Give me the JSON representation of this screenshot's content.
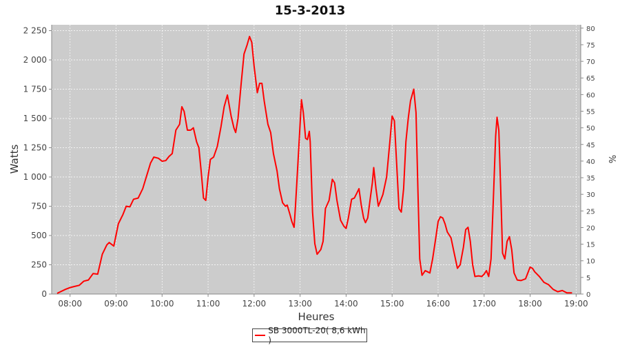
{
  "chart_data": {
    "type": "line",
    "title": "15-3-2013",
    "xlabel": "Heures",
    "ylabel": "Watts",
    "y2label": "%",
    "xlim": [
      7.6,
      19.1
    ],
    "ylim": [
      0,
      2300
    ],
    "y2lim": [
      0,
      81
    ],
    "x_ticks": [
      8,
      9,
      10,
      11,
      12,
      13,
      14,
      15,
      16,
      17,
      18,
      19
    ],
    "x_tick_labels": [
      "08:00",
      "09:00",
      "10:00",
      "11:00",
      "12:00",
      "13:00",
      "14:00",
      "15:00",
      "16:00",
      "17:00",
      "18:00",
      "19:00"
    ],
    "y_ticks": [
      0,
      250,
      500,
      750,
      1000,
      1250,
      1500,
      1750,
      2000,
      2250
    ],
    "y_tick_labels": [
      "0",
      "250",
      "500",
      "750",
      "1 000",
      "1 250",
      "1 500",
      "1 750",
      "2 000",
      "2 250"
    ],
    "y2_ticks": [
      0,
      5,
      10,
      15,
      20,
      25,
      30,
      35,
      40,
      45,
      50,
      55,
      60,
      65,
      70,
      75,
      80
    ],
    "y2_tick_labels": [
      "0",
      "5",
      "10",
      "15",
      "20",
      "25",
      "30",
      "35",
      "40",
      "45",
      "50",
      "55",
      "60",
      "65",
      "70",
      "75",
      "80"
    ],
    "grid": true,
    "legend_position": "bottom-center",
    "colors": {
      "plot_background": "#cccccc",
      "series": "#ff0000",
      "grid": "#ffffff"
    },
    "series": [
      {
        "name": "SB 3000TL-20( 8,6 kWh )",
        "color": "#ff0000",
        "points": [
          [
            7.73,
            8
          ],
          [
            7.9,
            40
          ],
          [
            8.0,
            55
          ],
          [
            8.1,
            65
          ],
          [
            8.2,
            75
          ],
          [
            8.3,
            110
          ],
          [
            8.4,
            120
          ],
          [
            8.5,
            175
          ],
          [
            8.6,
            170
          ],
          [
            8.7,
            340
          ],
          [
            8.8,
            420
          ],
          [
            8.85,
            440
          ],
          [
            8.95,
            410
          ],
          [
            9.05,
            600
          ],
          [
            9.15,
            680
          ],
          [
            9.22,
            750
          ],
          [
            9.3,
            745
          ],
          [
            9.38,
            810
          ],
          [
            9.48,
            820
          ],
          [
            9.58,
            900
          ],
          [
            9.68,
            1030
          ],
          [
            9.75,
            1120
          ],
          [
            9.82,
            1170
          ],
          [
            9.92,
            1160
          ],
          [
            10.0,
            1135
          ],
          [
            10.08,
            1140
          ],
          [
            10.15,
            1175
          ],
          [
            10.22,
            1200
          ],
          [
            10.3,
            1400
          ],
          [
            10.38,
            1450
          ],
          [
            10.43,
            1600
          ],
          [
            10.48,
            1560
          ],
          [
            10.55,
            1400
          ],
          [
            10.62,
            1400
          ],
          [
            10.68,
            1420
          ],
          [
            10.75,
            1300
          ],
          [
            10.8,
            1250
          ],
          [
            10.85,
            1050
          ],
          [
            10.9,
            820
          ],
          [
            10.95,
            800
          ],
          [
            11.0,
            1000
          ],
          [
            11.05,
            1150
          ],
          [
            11.12,
            1170
          ],
          [
            11.2,
            1260
          ],
          [
            11.28,
            1430
          ],
          [
            11.35,
            1600
          ],
          [
            11.42,
            1700
          ],
          [
            11.5,
            1520
          ],
          [
            11.56,
            1420
          ],
          [
            11.6,
            1380
          ],
          [
            11.65,
            1500
          ],
          [
            11.72,
            1800
          ],
          [
            11.78,
            2050
          ],
          [
            11.85,
            2130
          ],
          [
            11.9,
            2200
          ],
          [
            11.95,
            2150
          ],
          [
            12.0,
            1950
          ],
          [
            12.07,
            1720
          ],
          [
            12.12,
            1800
          ],
          [
            12.17,
            1800
          ],
          [
            12.22,
            1650
          ],
          [
            12.3,
            1450
          ],
          [
            12.36,
            1380
          ],
          [
            12.42,
            1200
          ],
          [
            12.5,
            1050
          ],
          [
            12.55,
            900
          ],
          [
            12.62,
            780
          ],
          [
            12.68,
            750
          ],
          [
            12.72,
            760
          ],
          [
            12.78,
            680
          ],
          [
            12.82,
            620
          ],
          [
            12.87,
            570
          ],
          [
            12.9,
            750
          ],
          [
            12.95,
            1100
          ],
          [
            13.0,
            1450
          ],
          [
            13.03,
            1660
          ],
          [
            13.07,
            1550
          ],
          [
            13.12,
            1330
          ],
          [
            13.16,
            1320
          ],
          [
            13.2,
            1390
          ],
          [
            13.22,
            1300
          ],
          [
            13.27,
            700
          ],
          [
            13.32,
            430
          ],
          [
            13.37,
            340
          ],
          [
            13.45,
            380
          ],
          [
            13.5,
            450
          ],
          [
            13.55,
            730
          ],
          [
            13.63,
            800
          ],
          [
            13.7,
            980
          ],
          [
            13.75,
            950
          ],
          [
            13.8,
            800
          ],
          [
            13.88,
            630
          ],
          [
            13.95,
            580
          ],
          [
            14.0,
            560
          ],
          [
            14.05,
            650
          ],
          [
            14.12,
            810
          ],
          [
            14.18,
            820
          ],
          [
            14.23,
            860
          ],
          [
            14.28,
            900
          ],
          [
            14.33,
            760
          ],
          [
            14.38,
            650
          ],
          [
            14.42,
            610
          ],
          [
            14.47,
            650
          ],
          [
            14.52,
            800
          ],
          [
            14.57,
            950
          ],
          [
            14.6,
            1080
          ],
          [
            14.65,
            900
          ],
          [
            14.7,
            750
          ],
          [
            14.75,
            800
          ],
          [
            14.8,
            850
          ],
          [
            14.88,
            1000
          ],
          [
            14.95,
            1300
          ],
          [
            15.0,
            1520
          ],
          [
            15.05,
            1480
          ],
          [
            15.1,
            1100
          ],
          [
            15.15,
            730
          ],
          [
            15.2,
            700
          ],
          [
            15.25,
            900
          ],
          [
            15.3,
            1300
          ],
          [
            15.35,
            1500
          ],
          [
            15.4,
            1650
          ],
          [
            15.47,
            1750
          ],
          [
            15.52,
            1550
          ],
          [
            15.56,
            900
          ],
          [
            15.6,
            300
          ],
          [
            15.65,
            160
          ],
          [
            15.72,
            200
          ],
          [
            15.77,
            190
          ],
          [
            15.82,
            180
          ],
          [
            15.88,
            300
          ],
          [
            15.95,
            480
          ],
          [
            16.0,
            620
          ],
          [
            16.05,
            660
          ],
          [
            16.1,
            650
          ],
          [
            16.15,
            600
          ],
          [
            16.2,
            530
          ],
          [
            16.28,
            480
          ],
          [
            16.35,
            350
          ],
          [
            16.42,
            220
          ],
          [
            16.48,
            250
          ],
          [
            16.55,
            400
          ],
          [
            16.6,
            550
          ],
          [
            16.65,
            570
          ],
          [
            16.7,
            450
          ],
          [
            16.75,
            250
          ],
          [
            16.8,
            150
          ],
          [
            16.88,
            155
          ],
          [
            16.95,
            150
          ],
          [
            17.0,
            170
          ],
          [
            17.05,
            200
          ],
          [
            17.1,
            150
          ],
          [
            17.15,
            300
          ],
          [
            17.2,
            800
          ],
          [
            17.25,
            1350
          ],
          [
            17.28,
            1510
          ],
          [
            17.32,
            1400
          ],
          [
            17.36,
            900
          ],
          [
            17.4,
            350
          ],
          [
            17.45,
            300
          ],
          [
            17.5,
            450
          ],
          [
            17.55,
            490
          ],
          [
            17.6,
            380
          ],
          [
            17.65,
            180
          ],
          [
            17.72,
            120
          ],
          [
            17.8,
            115
          ],
          [
            17.9,
            130
          ],
          [
            17.95,
            180
          ],
          [
            18.0,
            230
          ],
          [
            18.05,
            220
          ],
          [
            18.1,
            190
          ],
          [
            18.2,
            150
          ],
          [
            18.3,
            100
          ],
          [
            18.4,
            80
          ],
          [
            18.5,
            40
          ],
          [
            18.6,
            20
          ],
          [
            18.7,
            30
          ],
          [
            18.75,
            20
          ],
          [
            18.8,
            10
          ],
          [
            18.9,
            10
          ]
        ]
      }
    ]
  },
  "legend": {
    "label": "SB 3000TL-20( 8,6 kWh )"
  }
}
